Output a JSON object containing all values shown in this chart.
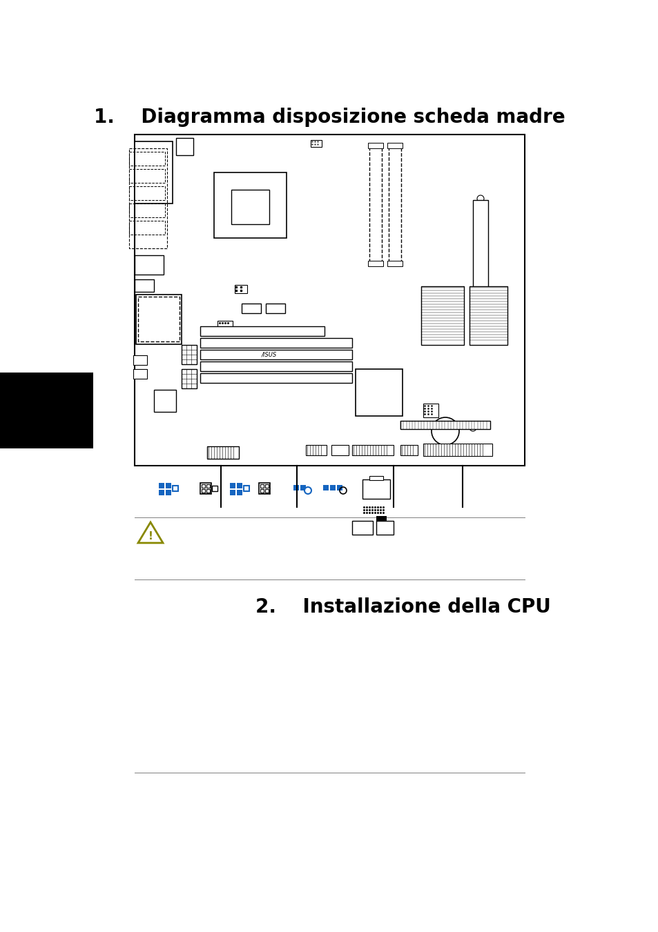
{
  "title1": "1.    Diagramma disposizione scheda madre",
  "title2": "2.    Installazione della CPU",
  "bg_color": "#ffffff",
  "text_color": "#000000",
  "blue_color": "#1565C0",
  "board_color": "#000000",
  "figsize": [
    9.54,
    13.51
  ],
  "dpi": 100
}
